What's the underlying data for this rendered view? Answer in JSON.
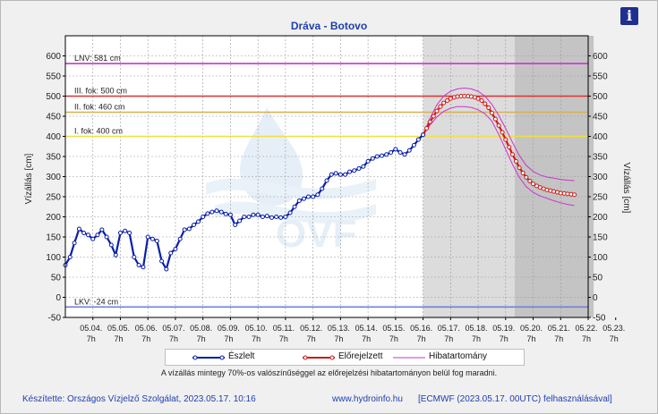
{
  "title": "Dráva - Botovo",
  "info_icon": "i",
  "footer": {
    "left": "Készítette: Országos Vízjelző Szolgálat, 2023.05.17. 10:16",
    "mid": "www.hydroinfo.hu",
    "right": "[ECMWF (2023.05.17. 00UTC) felhasználásával]"
  },
  "note": "A vízállás mintegy 70%-os valószínűséggel az előrejelzési hibatartományon belül fog maradni.",
  "legend": {
    "observed": "Észlelt",
    "forecast": "Előrejelzett",
    "band": "Hibatartomány"
  },
  "colors": {
    "observed": "#0a1fa8",
    "forecast": "#cc1b1b",
    "band": "#cc33cc",
    "lnv": "#cc33cc",
    "grade3": "#e03030",
    "grade2": "#d8b050",
    "grade1": "#f0e040",
    "lkv": "#7080d8"
  },
  "chart_data": {
    "type": "line",
    "title": "Dráva - Botovo",
    "ylabel": "Vízállás [cm]",
    "ylabel_right": "Vízállás [cm]",
    "ylim": [
      -50,
      650
    ],
    "yticks": [
      -50,
      0,
      50,
      100,
      150,
      200,
      250,
      300,
      350,
      400,
      450,
      500,
      550,
      600
    ],
    "x_tick_labels": [
      {
        "date": "05.04.",
        "hour": "7h"
      },
      {
        "date": "05.05.",
        "hour": "7h"
      },
      {
        "date": "05.06.",
        "hour": "7h"
      },
      {
        "date": "05.07.",
        "hour": "7h"
      },
      {
        "date": "05.08.",
        "hour": "7h"
      },
      {
        "date": "05.09.",
        "hour": "7h"
      },
      {
        "date": "05.10.",
        "hour": "7h"
      },
      {
        "date": "05.11.",
        "hour": "7h"
      },
      {
        "date": "05.12.",
        "hour": "7h"
      },
      {
        "date": "05.13.",
        "hour": "7h"
      },
      {
        "date": "05.14.",
        "hour": "7h"
      },
      {
        "date": "05.15.",
        "hour": "7h"
      },
      {
        "date": "05.16.",
        "hour": "7h"
      },
      {
        "date": "05.17.",
        "hour": "7h"
      },
      {
        "date": "05.18.",
        "hour": "7h"
      },
      {
        "date": "05.19.",
        "hour": "7h"
      },
      {
        "date": "05.20.",
        "hour": "7h"
      },
      {
        "date": "05.21.",
        "hour": "7h"
      },
      {
        "date": "05.22.",
        "hour": "7h"
      },
      {
        "date": "05.23.",
        "hour": "7h"
      }
    ],
    "thresholds": [
      {
        "label": "LNV: 581 cm",
        "value": 581,
        "color": "#cc33cc"
      },
      {
        "label": "III. fok: 500 cm",
        "value": 500,
        "color": "#e03030"
      },
      {
        "label": "II. fok: 460 cm",
        "value": 460,
        "color": "#d8b050"
      },
      {
        "label": "I. fok: 400 cm",
        "value": 400,
        "color": "#f0e040"
      },
      {
        "label": "LKV: -24 cm",
        "value": -24,
        "color": "#7080d8"
      }
    ],
    "shaded_regions": [
      {
        "from_day": 13,
        "to_day": 16.33,
        "color": "#dcdcdc"
      },
      {
        "from_day": 16.33,
        "to_day": 19.2,
        "color": "#c4c4c4"
      }
    ],
    "observed": [
      [
        0.0,
        80
      ],
      [
        0.17,
        100
      ],
      [
        0.33,
        135
      ],
      [
        0.5,
        170
      ],
      [
        0.67,
        160
      ],
      [
        0.83,
        155
      ],
      [
        1.0,
        145
      ],
      [
        1.17,
        155
      ],
      [
        1.33,
        168
      ],
      [
        1.5,
        150
      ],
      [
        1.67,
        130
      ],
      [
        1.83,
        105
      ],
      [
        2.0,
        160
      ],
      [
        2.17,
        165
      ],
      [
        2.33,
        160
      ],
      [
        2.5,
        100
      ],
      [
        2.67,
        80
      ],
      [
        2.83,
        75
      ],
      [
        3.0,
        150
      ],
      [
        3.17,
        145
      ],
      [
        3.33,
        140
      ],
      [
        3.5,
        90
      ],
      [
        3.67,
        70
      ],
      [
        3.83,
        110
      ],
      [
        4.0,
        120
      ],
      [
        4.17,
        145
      ],
      [
        4.33,
        168
      ],
      [
        4.5,
        170
      ],
      [
        4.67,
        180
      ],
      [
        4.83,
        188
      ],
      [
        5.0,
        200
      ],
      [
        5.17,
        208
      ],
      [
        5.33,
        212
      ],
      [
        5.5,
        215
      ],
      [
        5.67,
        212
      ],
      [
        5.83,
        207
      ],
      [
        6.0,
        205
      ],
      [
        6.17,
        180
      ],
      [
        6.33,
        190
      ],
      [
        6.5,
        200
      ],
      [
        6.67,
        200
      ],
      [
        6.83,
        205
      ],
      [
        7.0,
        205
      ],
      [
        7.17,
        200
      ],
      [
        7.33,
        202
      ],
      [
        7.5,
        198
      ],
      [
        7.67,
        200
      ],
      [
        7.83,
        198
      ],
      [
        8.0,
        200
      ],
      [
        8.17,
        210
      ],
      [
        8.33,
        225
      ],
      [
        8.5,
        240
      ],
      [
        8.67,
        245
      ],
      [
        8.83,
        250
      ],
      [
        9.0,
        250
      ],
      [
        9.17,
        255
      ],
      [
        9.33,
        270
      ],
      [
        9.5,
        290
      ],
      [
        9.67,
        305
      ],
      [
        9.83,
        308
      ],
      [
        10.0,
        305
      ],
      [
        10.17,
        305
      ],
      [
        10.33,
        312
      ],
      [
        10.5,
        315
      ],
      [
        10.67,
        320
      ],
      [
        10.83,
        325
      ],
      [
        11.0,
        338
      ],
      [
        11.17,
        345
      ],
      [
        11.33,
        350
      ],
      [
        11.5,
        352
      ],
      [
        11.67,
        355
      ],
      [
        11.83,
        360
      ],
      [
        12.0,
        368
      ],
      [
        12.17,
        360
      ],
      [
        12.33,
        355
      ],
      [
        12.5,
        365
      ],
      [
        12.67,
        378
      ],
      [
        12.83,
        392
      ],
      [
        13.0,
        404
      ]
    ],
    "forecast": [
      [
        13.0,
        404
      ],
      [
        13.13,
        420
      ],
      [
        13.25,
        436
      ],
      [
        13.38,
        450
      ],
      [
        13.5,
        463
      ],
      [
        13.63,
        474
      ],
      [
        13.75,
        483
      ],
      [
        13.88,
        489
      ],
      [
        14.0,
        494
      ],
      [
        14.13,
        497
      ],
      [
        14.25,
        499
      ],
      [
        14.38,
        500
      ],
      [
        14.5,
        500
      ],
      [
        14.63,
        500
      ],
      [
        14.75,
        499
      ],
      [
        14.88,
        497
      ],
      [
        15.0,
        494
      ],
      [
        15.13,
        489
      ],
      [
        15.25,
        481
      ],
      [
        15.38,
        471
      ],
      [
        15.5,
        458
      ],
      [
        15.63,
        443
      ],
      [
        15.75,
        427
      ],
      [
        15.88,
        410
      ],
      [
        16.0,
        392
      ],
      [
        16.13,
        373
      ],
      [
        16.25,
        355
      ],
      [
        16.38,
        338
      ],
      [
        16.5,
        322
      ],
      [
        16.63,
        309
      ],
      [
        16.75,
        298
      ],
      [
        16.88,
        289
      ],
      [
        17.0,
        282
      ],
      [
        17.13,
        277
      ],
      [
        17.25,
        273
      ],
      [
        17.38,
        270
      ],
      [
        17.5,
        267
      ],
      [
        17.63,
        265
      ],
      [
        17.75,
        263
      ],
      [
        17.88,
        261
      ],
      [
        18.0,
        259
      ],
      [
        18.13,
        258
      ],
      [
        18.25,
        257
      ],
      [
        18.38,
        256
      ],
      [
        18.5,
        255
      ]
    ],
    "band_upper": [
      [
        13.0,
        404
      ],
      [
        13.25,
        445
      ],
      [
        13.5,
        478
      ],
      [
        13.75,
        500
      ],
      [
        14.0,
        512
      ],
      [
        14.25,
        518
      ],
      [
        14.5,
        520
      ],
      [
        14.75,
        518
      ],
      [
        15.0,
        512
      ],
      [
        15.25,
        500
      ],
      [
        15.5,
        480
      ],
      [
        15.75,
        452
      ],
      [
        16.0,
        420
      ],
      [
        16.25,
        385
      ],
      [
        16.5,
        352
      ],
      [
        16.75,
        328
      ],
      [
        17.0,
        313
      ],
      [
        17.25,
        304
      ],
      [
        17.5,
        299
      ],
      [
        17.75,
        296
      ],
      [
        18.0,
        293
      ],
      [
        18.25,
        291
      ],
      [
        18.5,
        290
      ]
    ],
    "band_lower": [
      [
        13.0,
        404
      ],
      [
        13.25,
        428
      ],
      [
        13.5,
        448
      ],
      [
        13.75,
        462
      ],
      [
        14.0,
        470
      ],
      [
        14.25,
        474
      ],
      [
        14.5,
        474
      ],
      [
        14.75,
        472
      ],
      [
        15.0,
        466
      ],
      [
        15.25,
        456
      ],
      [
        15.5,
        438
      ],
      [
        15.75,
        405
      ],
      [
        16.0,
        368
      ],
      [
        16.25,
        330
      ],
      [
        16.5,
        298
      ],
      [
        16.75,
        275
      ],
      [
        17.0,
        261
      ],
      [
        17.25,
        252
      ],
      [
        17.5,
        246
      ],
      [
        17.75,
        240
      ],
      [
        18.0,
        235
      ],
      [
        18.25,
        231
      ],
      [
        18.5,
        228
      ]
    ]
  }
}
